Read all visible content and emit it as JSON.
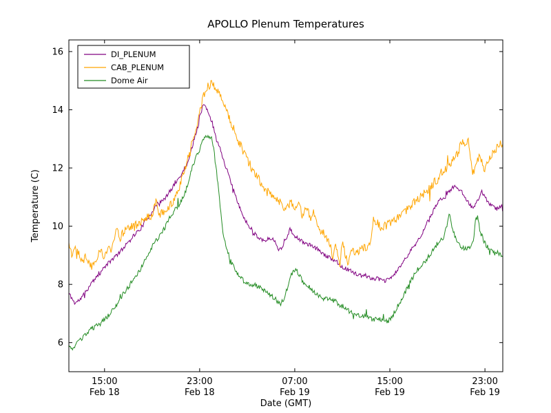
{
  "chart_data": {
    "type": "line",
    "title": "APOLLO Plenum Temperatures",
    "xlabel": "Date (GMT)",
    "ylabel": "Temperature (C)",
    "x_unit": "hours since Feb 18 00:00 GMT",
    "xlim": [
      12,
      48.5
    ],
    "ylim": [
      5,
      16.4
    ],
    "yticks": [
      6,
      8,
      10,
      12,
      14,
      16
    ],
    "xticks": [
      {
        "t": 15,
        "time": "15:00",
        "date": "Feb 18"
      },
      {
        "t": 23,
        "time": "23:00",
        "date": "Feb 18"
      },
      {
        "t": 31,
        "time": "07:00",
        "date": "Feb 19"
      },
      {
        "t": 39,
        "time": "15:00",
        "date": "Feb 19"
      },
      {
        "t": 47,
        "time": "23:00",
        "date": "Feb 19"
      }
    ],
    "grid": false,
    "legend": {
      "position": "upper-left",
      "entries": [
        "DI_PLENUM",
        "CAB_PLENUM",
        "Dome Air"
      ]
    },
    "series": [
      {
        "name": "DI_PLENUM",
        "color": "#800080",
        "noise": 0.07,
        "seed": 11,
        "points": [
          [
            12,
            7.7
          ],
          [
            12.5,
            7.35
          ],
          [
            13,
            7.5
          ],
          [
            13.5,
            7.8
          ],
          [
            14,
            8.1
          ],
          [
            14.5,
            8.3
          ],
          [
            15,
            8.6
          ],
          [
            15.5,
            8.8
          ],
          [
            16,
            9.0
          ],
          [
            16.5,
            9.2
          ],
          [
            17,
            9.5
          ],
          [
            17.5,
            9.7
          ],
          [
            18,
            9.9
          ],
          [
            18.5,
            10.2
          ],
          [
            19,
            10.5
          ],
          [
            19.5,
            10.8
          ],
          [
            20,
            10.9
          ],
          [
            20.5,
            11.2
          ],
          [
            21,
            11.5
          ],
          [
            21.5,
            11.8
          ],
          [
            22,
            12.2
          ],
          [
            22.3,
            12.6
          ],
          [
            22.6,
            13.1
          ],
          [
            22.9,
            13.5
          ],
          [
            23.1,
            13.9
          ],
          [
            23.3,
            14.2
          ],
          [
            23.5,
            14.1
          ],
          [
            23.8,
            13.8
          ],
          [
            24,
            13.6
          ],
          [
            24.3,
            13.2
          ],
          [
            24.6,
            12.8
          ],
          [
            25,
            12.3
          ],
          [
            25.4,
            11.8
          ],
          [
            25.8,
            11.3
          ],
          [
            26.2,
            10.8
          ],
          [
            26.6,
            10.4
          ],
          [
            27,
            10.1
          ],
          [
            27.5,
            9.8
          ],
          [
            28,
            9.6
          ],
          [
            28.5,
            9.5
          ],
          [
            29,
            9.6
          ],
          [
            29.3,
            9.5
          ],
          [
            29.6,
            9.2
          ],
          [
            30,
            9.3
          ],
          [
            30.3,
            9.6
          ],
          [
            30.6,
            9.9
          ],
          [
            30.9,
            9.7
          ],
          [
            31.2,
            9.6
          ],
          [
            31.5,
            9.5
          ],
          [
            32,
            9.4
          ],
          [
            32.5,
            9.3
          ],
          [
            33,
            9.2
          ],
          [
            33.5,
            9.0
          ],
          [
            34,
            8.9
          ],
          [
            34.5,
            8.8
          ],
          [
            35,
            8.6
          ],
          [
            35.5,
            8.5
          ],
          [
            36,
            8.4
          ],
          [
            36.5,
            8.3
          ],
          [
            37,
            8.3
          ],
          [
            37.5,
            8.2
          ],
          [
            38,
            8.2
          ],
          [
            38.5,
            8.1
          ],
          [
            39,
            8.2
          ],
          [
            39.5,
            8.4
          ],
          [
            40,
            8.7
          ],
          [
            40.5,
            9.0
          ],
          [
            41,
            9.3
          ],
          [
            41.5,
            9.6
          ],
          [
            42,
            10.0
          ],
          [
            42.5,
            10.4
          ],
          [
            43,
            10.8
          ],
          [
            43.5,
            11.0
          ],
          [
            44,
            11.2
          ],
          [
            44.5,
            11.4
          ],
          [
            45,
            11.2
          ],
          [
            45.5,
            10.9
          ],
          [
            46,
            10.6
          ],
          [
            46.3,
            10.8
          ],
          [
            46.7,
            11.2
          ],
          [
            47,
            11.0
          ],
          [
            47.5,
            10.7
          ],
          [
            48,
            10.6
          ],
          [
            48.5,
            10.7
          ]
        ]
      },
      {
        "name": "CAB_PLENUM",
        "color": "#FFA500",
        "noise": 0.15,
        "seed": 22,
        "points": [
          [
            12,
            9.4
          ],
          [
            12.3,
            9.1
          ],
          [
            12.6,
            9.3
          ],
          [
            13,
            8.9
          ],
          [
            13.3,
            9.0
          ],
          [
            13.6,
            8.8
          ],
          [
            14,
            8.6
          ],
          [
            14.3,
            8.9
          ],
          [
            14.6,
            9.1
          ],
          [
            15,
            9.0
          ],
          [
            15.3,
            9.3
          ],
          [
            15.6,
            9.2
          ],
          [
            16,
            9.9
          ],
          [
            16.3,
            9.6
          ],
          [
            16.6,
            9.8
          ],
          [
            17,
            10.0
          ],
          [
            17.5,
            10.0
          ],
          [
            18,
            10.1
          ],
          [
            18.5,
            10.3
          ],
          [
            19,
            10.4
          ],
          [
            19.3,
            10.9
          ],
          [
            19.6,
            10.4
          ],
          [
            20,
            10.5
          ],
          [
            20.5,
            10.7
          ],
          [
            21,
            11.0
          ],
          [
            21.5,
            11.6
          ],
          [
            22,
            12.3
          ],
          [
            22.4,
            13.0
          ],
          [
            22.7,
            13.4
          ],
          [
            23,
            13.9
          ],
          [
            23.3,
            14.4
          ],
          [
            23.6,
            14.8
          ],
          [
            24,
            14.9
          ],
          [
            24.3,
            14.8
          ],
          [
            24.6,
            14.6
          ],
          [
            25,
            14.3
          ],
          [
            25.3,
            14.0
          ],
          [
            25.6,
            13.6
          ],
          [
            26,
            13.2
          ],
          [
            26.5,
            12.7
          ],
          [
            27,
            12.3
          ],
          [
            27.5,
            11.9
          ],
          [
            28,
            11.6
          ],
          [
            28.5,
            11.3
          ],
          [
            29,
            11.1
          ],
          [
            29.5,
            10.9
          ],
          [
            30,
            10.7
          ],
          [
            30.4,
            10.6
          ],
          [
            30.7,
            10.9
          ],
          [
            31,
            10.5
          ],
          [
            31.3,
            10.8
          ],
          [
            31.6,
            10.4
          ],
          [
            32,
            10.6
          ],
          [
            32.3,
            10.3
          ],
          [
            32.6,
            10.5
          ],
          [
            33,
            10.0
          ],
          [
            33.3,
            9.8
          ],
          [
            33.6,
            9.7
          ],
          [
            34,
            9.3
          ],
          [
            34.2,
            8.8
          ],
          [
            34.4,
            9.4
          ],
          [
            34.6,
            9.0
          ],
          [
            34.8,
            8.7
          ],
          [
            35,
            9.4
          ],
          [
            35.3,
            9.0
          ],
          [
            35.5,
            8.6
          ],
          [
            35.8,
            9.3
          ],
          [
            36,
            9.0
          ],
          [
            36.3,
            9.1
          ],
          [
            36.6,
            9.2
          ],
          [
            37,
            9.3
          ],
          [
            37.4,
            9.4
          ],
          [
            37.6,
            10.2
          ],
          [
            38,
            10.1
          ],
          [
            38.5,
            10.0
          ],
          [
            39,
            10.1
          ],
          [
            39.5,
            10.2
          ],
          [
            40,
            10.4
          ],
          [
            40.5,
            10.6
          ],
          [
            41,
            10.8
          ],
          [
            41.5,
            11.0
          ],
          [
            42,
            11.2
          ],
          [
            42.5,
            11.4
          ],
          [
            43,
            11.6
          ],
          [
            43.5,
            11.9
          ],
          [
            44,
            12.1
          ],
          [
            44.4,
            12.3
          ],
          [
            44.8,
            12.6
          ],
          [
            45,
            12.9
          ],
          [
            45.3,
            12.8
          ],
          [
            45.6,
            12.9
          ],
          [
            45.8,
            12.2
          ],
          [
            46,
            11.8
          ],
          [
            46.3,
            12.2
          ],
          [
            46.6,
            12.4
          ],
          [
            46.9,
            11.9
          ],
          [
            47.2,
            12.1
          ],
          [
            47.6,
            12.5
          ],
          [
            48,
            12.7
          ],
          [
            48.5,
            12.9
          ]
        ]
      },
      {
        "name": "Dome Air",
        "color": "#228B22",
        "noise": 0.08,
        "seed": 33,
        "points": [
          [
            12,
            5.9
          ],
          [
            12.3,
            5.7
          ],
          [
            12.6,
            6.0
          ],
          [
            13,
            6.1
          ],
          [
            13.5,
            6.3
          ],
          [
            14,
            6.5
          ],
          [
            14.5,
            6.6
          ],
          [
            15,
            6.8
          ],
          [
            15.5,
            7.0
          ],
          [
            16,
            7.3
          ],
          [
            16.5,
            7.6
          ],
          [
            17,
            7.9
          ],
          [
            17.5,
            8.2
          ],
          [
            18,
            8.5
          ],
          [
            18.5,
            8.9
          ],
          [
            19,
            9.3
          ],
          [
            19.5,
            9.6
          ],
          [
            20,
            9.9
          ],
          [
            20.5,
            10.3
          ],
          [
            21,
            10.6
          ],
          [
            21.5,
            10.9
          ],
          [
            22,
            11.4
          ],
          [
            22.3,
            11.9
          ],
          [
            22.6,
            12.3
          ],
          [
            23,
            12.6
          ],
          [
            23.3,
            13.0
          ],
          [
            23.6,
            13.1
          ],
          [
            24,
            13.0
          ],
          [
            24.2,
            12.6
          ],
          [
            24.5,
            11.6
          ],
          [
            24.8,
            10.4
          ],
          [
            25,
            9.7
          ],
          [
            25.3,
            9.2
          ],
          [
            25.6,
            8.8
          ],
          [
            26,
            8.5
          ],
          [
            26.5,
            8.2
          ],
          [
            27,
            8.0
          ],
          [
            27.5,
            8.0
          ],
          [
            28,
            7.9
          ],
          [
            28.5,
            7.8
          ],
          [
            29,
            7.6
          ],
          [
            29.4,
            7.5
          ],
          [
            29.8,
            7.3
          ],
          [
            30.2,
            7.6
          ],
          [
            30.5,
            8.1
          ],
          [
            30.8,
            8.4
          ],
          [
            31.1,
            8.5
          ],
          [
            31.4,
            8.3
          ],
          [
            31.7,
            8.1
          ],
          [
            32,
            8.0
          ],
          [
            32.5,
            7.8
          ],
          [
            33,
            7.6
          ],
          [
            33.5,
            7.5
          ],
          [
            34,
            7.5
          ],
          [
            34.5,
            7.4
          ],
          [
            35,
            7.2
          ],
          [
            35.5,
            7.1
          ],
          [
            36,
            7.0
          ],
          [
            36.5,
            6.9
          ],
          [
            37,
            6.9
          ],
          [
            37.5,
            6.8
          ],
          [
            38,
            6.8
          ],
          [
            38.5,
            6.8
          ],
          [
            38.8,
            6.7
          ],
          [
            39.2,
            6.9
          ],
          [
            39.6,
            7.2
          ],
          [
            40,
            7.5
          ],
          [
            40.5,
            7.9
          ],
          [
            41,
            8.3
          ],
          [
            41.5,
            8.6
          ],
          [
            42,
            8.8
          ],
          [
            42.5,
            9.1
          ],
          [
            43,
            9.4
          ],
          [
            43.5,
            9.6
          ],
          [
            43.8,
            10.0
          ],
          [
            44,
            10.4
          ],
          [
            44.2,
            10.0
          ],
          [
            44.5,
            9.6
          ],
          [
            45,
            9.3
          ],
          [
            45.5,
            9.2
          ],
          [
            46,
            9.4
          ],
          [
            46.2,
            10.2
          ],
          [
            46.4,
            10.3
          ],
          [
            46.6,
            9.8
          ],
          [
            47,
            9.4
          ],
          [
            47.3,
            9.2
          ],
          [
            48,
            9.1
          ],
          [
            48.5,
            9.0
          ]
        ]
      }
    ]
  }
}
